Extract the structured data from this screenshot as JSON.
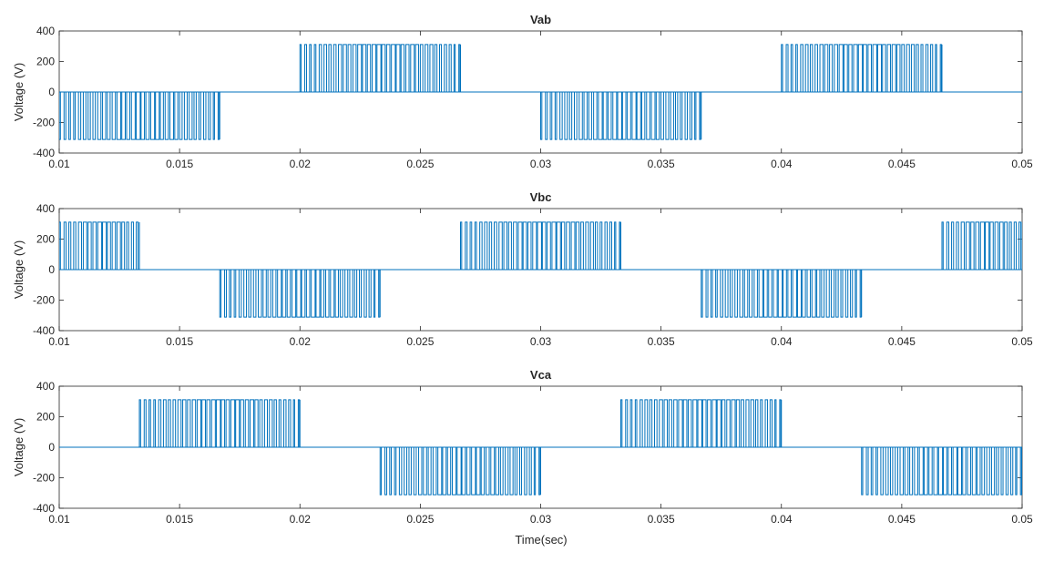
{
  "figure": {
    "xlabel": "Time(sec)"
  },
  "chart_data": [
    {
      "type": "line",
      "title": "Vab",
      "xlabel": "",
      "ylabel": "Voltage (V)",
      "xlim": [
        0.01,
        0.05
      ],
      "ylim": [
        -400,
        400
      ],
      "xticks": [
        "0.01",
        "0.015",
        "0.02",
        "0.025",
        "0.03",
        "0.035",
        "0.04",
        "0.045",
        "0.05"
      ],
      "yticks": [
        "400",
        "200",
        "0",
        "-200",
        "-400"
      ],
      "grid": false,
      "color": "#0072BD",
      "amplitude": 311,
      "pulse_period": 0.0002,
      "segments": [
        {
          "start": 0.01,
          "end": 0.01667,
          "sign": -1
        },
        {
          "start": 0.02,
          "end": 0.02667,
          "sign": 1
        },
        {
          "start": 0.03,
          "end": 0.03667,
          "sign": -1
        },
        {
          "start": 0.04,
          "end": 0.04667,
          "sign": 1
        }
      ]
    },
    {
      "type": "line",
      "title": "Vbc",
      "xlabel": "",
      "ylabel": "Voltage (V)",
      "xlim": [
        0.01,
        0.05
      ],
      "ylim": [
        -400,
        400
      ],
      "xticks": [
        "0.01",
        "0.015",
        "0.02",
        "0.025",
        "0.03",
        "0.035",
        "0.04",
        "0.045",
        "0.05"
      ],
      "yticks": [
        "400",
        "200",
        "0",
        "-200",
        "-400"
      ],
      "grid": false,
      "color": "#0072BD",
      "amplitude": 311,
      "pulse_period": 0.0002,
      "segments": [
        {
          "start": 0.01,
          "end": 0.01333,
          "sign": 1
        },
        {
          "start": 0.01667,
          "end": 0.02333,
          "sign": -1
        },
        {
          "start": 0.02667,
          "end": 0.03333,
          "sign": 1
        },
        {
          "start": 0.03667,
          "end": 0.04333,
          "sign": -1
        },
        {
          "start": 0.04667,
          "end": 0.05,
          "sign": 1
        }
      ]
    },
    {
      "type": "line",
      "title": "Vca",
      "xlabel": "Time(sec)",
      "ylabel": "Voltage (V)",
      "xlim": [
        0.01,
        0.05
      ],
      "ylim": [
        -400,
        400
      ],
      "xticks": [
        "0.01",
        "0.015",
        "0.02",
        "0.025",
        "0.03",
        "0.035",
        "0.04",
        "0.045",
        "0.05"
      ],
      "yticks": [
        "400",
        "200",
        "0",
        "-200",
        "-400"
      ],
      "grid": false,
      "color": "#0072BD",
      "amplitude": 311,
      "pulse_period": 0.0002,
      "segments": [
        {
          "start": 0.01333,
          "end": 0.02,
          "sign": 1
        },
        {
          "start": 0.02333,
          "end": 0.03,
          "sign": -1
        },
        {
          "start": 0.03333,
          "end": 0.04,
          "sign": 1
        },
        {
          "start": 0.04333,
          "end": 0.05,
          "sign": -1
        }
      ]
    }
  ]
}
